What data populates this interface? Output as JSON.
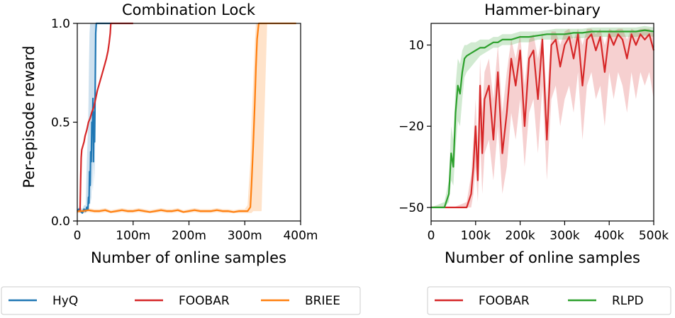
{
  "figure": {
    "y_label": "Per-episode reward"
  },
  "chart_data": [
    {
      "type": "line",
      "title": "Combination Lock",
      "xlabel": "Number of online samples",
      "ylabel": "Per-episode reward",
      "xlim": [
        0,
        400000000
      ],
      "ylim": [
        0.0,
        1.0
      ],
      "xticks": [
        0,
        100000000,
        200000000,
        300000000,
        400000000
      ],
      "xtick_labels": [
        "0",
        "100m",
        "200m",
        "300m",
        "400m"
      ],
      "yticks": [
        0.0,
        0.5,
        1.0
      ],
      "ytick_labels": [
        "0.0",
        "0.5",
        "1.0"
      ],
      "grid": false,
      "series": [
        {
          "name": "HyQ",
          "color": "#1f77b4",
          "x": [
            0,
            3000000,
            6000000,
            9000000,
            12000000,
            15000000,
            17000000,
            19000000,
            20000000,
            21000000,
            22000000,
            23000000,
            24000000,
            25000000,
            26000000,
            27000000,
            28000000,
            29000000,
            30000000,
            31000000,
            32000000,
            33000000,
            34000000,
            36000000,
            40000000,
            45000000,
            50000000,
            55000000,
            60000000
          ],
          "y": [
            0.05,
            0.06,
            0.05,
            0.04,
            0.06,
            0.05,
            0.07,
            0.06,
            0.12,
            0.09,
            0.25,
            0.18,
            0.35,
            0.3,
            0.5,
            0.45,
            0.62,
            0.3,
            0.55,
            0.4,
            0.65,
            0.95,
            1.0,
            1.0,
            1.0,
            1.0,
            1.0,
            1.0,
            1.0
          ],
          "band_low": [
            0.04,
            0.05,
            0.04,
            0.04,
            0.04,
            0.04,
            0.05,
            0.05,
            0.06,
            0.06,
            0.1,
            0.08,
            0.12,
            0.1,
            0.2,
            0.15,
            0.3,
            0.15,
            0.3,
            0.2,
            0.4,
            0.7,
            0.95,
            1.0,
            1.0,
            1.0,
            1.0,
            1.0,
            1.0
          ],
          "band_high": [
            0.06,
            0.07,
            0.07,
            0.06,
            0.08,
            0.08,
            0.3,
            0.45,
            0.6,
            0.8,
            0.95,
            1.0,
            1.0,
            1.0,
            1.0,
            1.0,
            1.0,
            1.0,
            1.0,
            1.0,
            1.0,
            1.0,
            1.0,
            1.0,
            1.0,
            1.0,
            1.0,
            1.0,
            1.0
          ]
        },
        {
          "name": "FOOBAR",
          "color": "#d62728",
          "x": [
            0,
            3000000,
            5000000,
            6000000,
            7000000,
            8000000,
            10000000,
            12000000,
            14000000,
            17000000,
            20000000,
            23000000,
            26000000,
            30000000,
            33000000,
            36000000,
            40000000,
            44000000,
            48000000,
            52000000,
            55000000,
            57000000,
            59000000,
            60000000,
            65000000,
            70000000,
            80000000,
            90000000,
            100000000
          ],
          "y": [
            0.05,
            0.05,
            0.05,
            0.2,
            0.32,
            0.36,
            0.38,
            0.4,
            0.43,
            0.46,
            0.5,
            0.52,
            0.55,
            0.58,
            0.62,
            0.66,
            0.7,
            0.74,
            0.78,
            0.82,
            0.86,
            0.9,
            0.95,
            1.0,
            1.0,
            1.0,
            1.0,
            1.0,
            1.0
          ]
        },
        {
          "name": "BRIEE",
          "color": "#ff7f0e",
          "x": [
            0,
            10000000,
            20000000,
            30000000,
            40000000,
            50000000,
            60000000,
            70000000,
            80000000,
            90000000,
            100000000,
            110000000,
            120000000,
            130000000,
            140000000,
            150000000,
            160000000,
            170000000,
            180000000,
            190000000,
            200000000,
            210000000,
            220000000,
            230000000,
            240000000,
            250000000,
            260000000,
            270000000,
            280000000,
            290000000,
            300000000,
            305000000,
            310000000,
            312000000,
            315000000,
            318000000,
            320000000,
            322000000,
            325000000,
            330000000,
            340000000,
            360000000,
            380000000,
            392000000
          ],
          "y": [
            0.05,
            0.05,
            0.055,
            0.05,
            0.05,
            0.055,
            0.045,
            0.05,
            0.055,
            0.05,
            0.05,
            0.055,
            0.05,
            0.045,
            0.05,
            0.055,
            0.05,
            0.05,
            0.055,
            0.045,
            0.05,
            0.055,
            0.05,
            0.05,
            0.05,
            0.055,
            0.05,
            0.05,
            0.045,
            0.05,
            0.05,
            0.05,
            0.07,
            0.18,
            0.38,
            0.6,
            0.78,
            0.92,
            1.0,
            1.0,
            1.0,
            1.0,
            1.0,
            1.0
          ],
          "band_low": [
            0.04,
            0.04,
            0.045,
            0.04,
            0.04,
            0.045,
            0.04,
            0.04,
            0.045,
            0.04,
            0.04,
            0.045,
            0.04,
            0.04,
            0.04,
            0.045,
            0.04,
            0.04,
            0.045,
            0.04,
            0.04,
            0.045,
            0.04,
            0.04,
            0.04,
            0.045,
            0.04,
            0.04,
            0.04,
            0.04,
            0.04,
            0.04,
            0.04,
            0.04,
            0.05,
            0.05,
            0.05,
            0.05,
            0.05,
            0.05,
            1.0,
            1.0,
            1.0,
            1.0
          ],
          "band_high": [
            0.06,
            0.06,
            0.065,
            0.06,
            0.06,
            0.065,
            0.055,
            0.06,
            0.065,
            0.06,
            0.06,
            0.065,
            0.06,
            0.055,
            0.06,
            0.065,
            0.06,
            0.06,
            0.065,
            0.055,
            0.06,
            0.065,
            0.06,
            0.06,
            0.06,
            0.065,
            0.06,
            0.06,
            0.055,
            0.06,
            0.06,
            0.08,
            0.3,
            0.5,
            0.7,
            0.9,
            1.0,
            1.0,
            1.0,
            1.0,
            1.0,
            1.0,
            1.0,
            1.0
          ]
        }
      ],
      "legend": {
        "placement": "bottom",
        "entries": [
          {
            "label": "HyQ",
            "color": "#1f77b4"
          },
          {
            "label": "FOOBAR",
            "color": "#d62728"
          },
          {
            "label": "BRIEE",
            "color": "#ff7f0e"
          }
        ]
      }
    },
    {
      "type": "line",
      "title": "Hammer-binary",
      "xlabel": "Number of online samples",
      "ylabel": "",
      "xlim": [
        0,
        500000
      ],
      "ylim": [
        -55,
        18
      ],
      "xticks": [
        0,
        100000,
        200000,
        300000,
        400000,
        500000
      ],
      "xtick_labels": [
        "0",
        "100k",
        "200k",
        "300k",
        "400k",
        "500k"
      ],
      "yticks": [
        -50,
        -20,
        10
      ],
      "ytick_labels": [
        "−50",
        "−20",
        "10"
      ],
      "grid": false,
      "series": [
        {
          "name": "FOOBAR",
          "color": "#d62728",
          "x": [
            0,
            50000,
            80000,
            90000,
            95000,
            100000,
            105000,
            110000,
            115000,
            120000,
            130000,
            140000,
            150000,
            160000,
            170000,
            180000,
            190000,
            200000,
            210000,
            220000,
            230000,
            240000,
            250000,
            260000,
            270000,
            280000,
            290000,
            300000,
            310000,
            320000,
            330000,
            340000,
            350000,
            360000,
            370000,
            380000,
            390000,
            400000,
            410000,
            420000,
            430000,
            440000,
            450000,
            460000,
            470000,
            480000,
            490000,
            500000
          ],
          "y": [
            -50,
            -50,
            -50,
            -45,
            -35,
            -20,
            -40,
            -5,
            -30,
            -10,
            -5,
            -25,
            0,
            -30,
            -15,
            5,
            -5,
            8,
            -20,
            5,
            8,
            -10,
            12,
            -25,
            10,
            12,
            2,
            10,
            13,
            5,
            14,
            -5,
            12,
            14,
            8,
            13,
            0,
            14,
            10,
            14,
            12,
            5,
            14,
            10,
            14,
            12,
            14,
            8
          ],
          "band_low": [
            -50,
            -50,
            -50,
            -50,
            -45,
            -35,
            -48,
            -25,
            -45,
            -30,
            -25,
            -40,
            -20,
            -45,
            -35,
            -15,
            -25,
            -10,
            -35,
            -15,
            -10,
            -30,
            -5,
            -40,
            -10,
            -5,
            -20,
            -10,
            -5,
            -15,
            0,
            -25,
            -5,
            0,
            -10,
            -5,
            -20,
            0,
            -10,
            0,
            -5,
            -15,
            0,
            -10,
            0,
            -5,
            0,
            -10
          ],
          "band_high": [
            -50,
            -50,
            -48,
            -38,
            -25,
            -10,
            -30,
            5,
            -15,
            0,
            5,
            -10,
            10,
            -15,
            0,
            12,
            5,
            14,
            -5,
            12,
            14,
            5,
            15,
            -10,
            15,
            15,
            10,
            15,
            16,
            12,
            16,
            10,
            16,
            16,
            14,
            16,
            10,
            16,
            15,
            16,
            16,
            12,
            16,
            15,
            16,
            16,
            16,
            14
          ]
        },
        {
          "name": "RLPD",
          "color": "#2ca02c",
          "x": [
            0,
            30000,
            40000,
            45000,
            50000,
            55000,
            60000,
            65000,
            70000,
            75000,
            80000,
            90000,
            100000,
            110000,
            120000,
            130000,
            140000,
            150000,
            160000,
            180000,
            200000,
            220000,
            240000,
            260000,
            280000,
            300000,
            320000,
            340000,
            360000,
            380000,
            400000,
            420000,
            440000,
            460000,
            480000,
            500000
          ],
          "y": [
            -50,
            -50,
            -45,
            -30,
            -35,
            -15,
            -5,
            -8,
            0,
            5,
            6,
            7,
            8,
            9,
            9,
            10,
            11,
            11,
            12,
            12,
            13,
            13,
            13.5,
            14,
            14,
            14,
            14.5,
            14.5,
            15,
            15,
            15,
            15,
            15,
            15,
            15.5,
            15
          ],
          "band_low": [
            -50,
            -50,
            -48,
            -40,
            -42,
            -28,
            -18,
            -20,
            -10,
            -2,
            0,
            2,
            4,
            6,
            7,
            8,
            9,
            9,
            10,
            10,
            11,
            11,
            12,
            12,
            12,
            12,
            12.5,
            12.5,
            13,
            13,
            13,
            13,
            13,
            13,
            13.5,
            13
          ],
          "band_high": [
            -50,
            -48,
            -40,
            -20,
            -25,
            -5,
            5,
            3,
            8,
            10,
            10,
            11,
            11,
            12,
            12,
            12,
            13,
            13,
            14,
            14,
            15,
            15,
            15,
            15.5,
            16,
            16,
            16,
            16,
            16.5,
            16.5,
            16.5,
            16.5,
            16.5,
            16.5,
            17,
            16.5
          ]
        }
      ],
      "legend": {
        "placement": "bottom",
        "entries": [
          {
            "label": "FOOBAR",
            "color": "#d62728"
          },
          {
            "label": "RLPD",
            "color": "#2ca02c"
          }
        ]
      }
    }
  ]
}
